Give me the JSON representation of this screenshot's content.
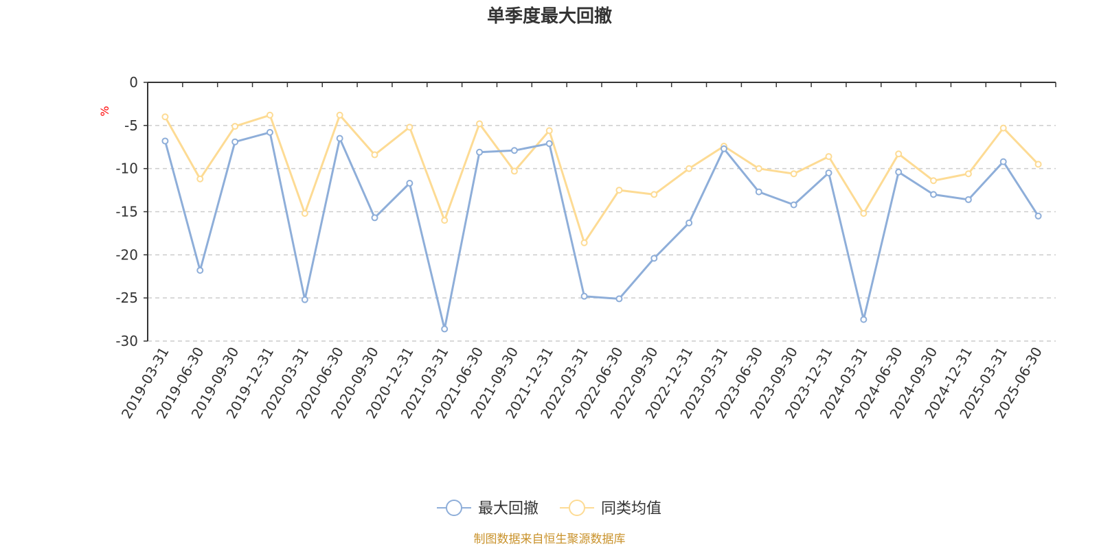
{
  "chart_data": {
    "type": "line",
    "title": "单季度最大回撤",
    "y_unit": "%",
    "ylim": [
      -30,
      0
    ],
    "y_ticks": [
      0,
      -5,
      -10,
      -15,
      -20,
      -25,
      -30
    ],
    "grid": "horizontal dashed",
    "legend_position": "bottom-center",
    "x": [
      "2019-03-31",
      "2019-06-30",
      "2019-09-30",
      "2019-12-31",
      "2020-03-31",
      "2020-06-30",
      "2020-09-30",
      "2020-12-31",
      "2021-03-31",
      "2021-06-30",
      "2021-09-30",
      "2021-12-31",
      "2022-03-31",
      "2022-06-30",
      "2022-09-30",
      "2022-12-31",
      "2023-03-31",
      "2023-06-30",
      "2023-09-30",
      "2023-12-31",
      "2024-03-31",
      "2024-06-30",
      "2024-09-30",
      "2024-12-31",
      "2025-03-31",
      "2025-06-30"
    ],
    "series": [
      {
        "name": "最大回撤",
        "color": "#8eaed9",
        "values": [
          -6.8,
          -21.8,
          -6.9,
          -5.8,
          -25.2,
          -6.5,
          -15.7,
          -11.7,
          -28.6,
          -8.1,
          -7.9,
          -7.1,
          -24.8,
          -25.1,
          -20.4,
          -16.3,
          -7.7,
          -12.7,
          -14.2,
          -10.5,
          -27.5,
          -10.4,
          -13.0,
          -13.6,
          -9.2,
          -15.5
        ]
      },
      {
        "name": "同类均值",
        "color": "#fddb94",
        "values": [
          -4.0,
          -11.2,
          -5.1,
          -3.8,
          -15.2,
          -3.8,
          -8.4,
          -5.2,
          -16.0,
          -4.8,
          -10.3,
          -5.6,
          -18.6,
          -12.5,
          -13.0,
          -10.0,
          -7.4,
          -10.0,
          -10.6,
          -8.6,
          -15.2,
          -8.3,
          -11.4,
          -10.6,
          -5.3,
          -9.5
        ]
      }
    ],
    "source_note": "制图数据来自恒生聚源数据库"
  }
}
